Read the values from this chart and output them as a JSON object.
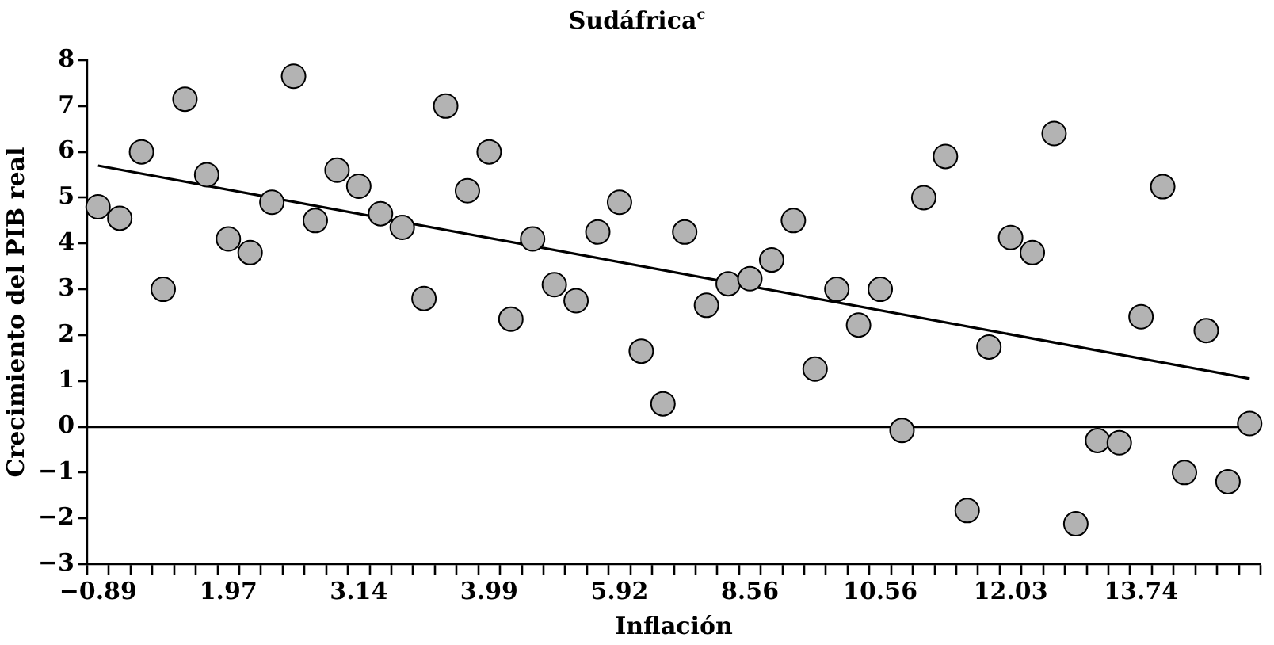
{
  "chart_data": {
    "type": "scatter",
    "title": "Sudáfrica$^{c}$",
    "xlabel": "Inflación",
    "ylabel": "Crecimiento del PIB real",
    "categories": [
      "−0.89",
      null,
      null,
      null,
      null,
      null,
      "1.97",
      null,
      null,
      null,
      null,
      null,
      "3.14",
      null,
      null,
      null,
      null,
      null,
      "3.99",
      null,
      null,
      null,
      null,
      null,
      "5.92",
      null,
      null,
      null,
      null,
      null,
      "8.56",
      null,
      null,
      null,
      null,
      null,
      "10.56",
      null,
      null,
      null,
      null,
      null,
      "12.03",
      null,
      null,
      null,
      null,
      null,
      "13.74",
      null,
      null,
      null,
      null,
      null
    ],
    "series": [
      {
        "color": "#b3b3b3",
        "marker": "circle",
        "values": [
          4.8,
          4.55,
          6.0,
          3.0,
          7.15,
          5.5,
          4.1,
          3.8,
          4.9,
          7.65,
          4.5,
          5.6,
          5.25,
          4.65,
          4.35,
          2.8,
          7.0,
          5.15,
          6.0,
          2.35,
          4.1,
          3.1,
          2.75,
          4.25,
          4.9,
          1.65,
          0.5,
          4.25,
          2.65,
          3.12,
          3.23,
          3.64,
          4.5,
          1.26,
          3.0,
          2.22,
          3.0,
          -0.08,
          5.0,
          5.9,
          -1.83,
          1.74,
          4.13,
          3.8,
          6.4,
          -2.12,
          -0.3,
          -0.35,
          2.4,
          5.24,
          -1.0,
          2.1,
          -1.2,
          0.07
        ]
      },
      {
        "type": "line",
        "color": "#000000",
        "marker": "none",
        "values": [
          5.7,
          null,
          null,
          null,
          null,
          null,
          null,
          null,
          null,
          null,
          null,
          null,
          null,
          null,
          null,
          null,
          null,
          null,
          null,
          null,
          null,
          null,
          null,
          null,
          null,
          null,
          null,
          null,
          null,
          null,
          null,
          null,
          null,
          null,
          null,
          null,
          null,
          null,
          null,
          null,
          null,
          null,
          null,
          null,
          null,
          null,
          null,
          null,
          null,
          null,
          null,
          null,
          null,
          1.05
        ]
      }
    ],
    "ylim": [
      -3,
      8
    ],
    "yticks": [
      -3,
      -2,
      -1,
      0,
      1,
      2,
      3,
      4,
      5,
      6,
      7,
      8
    ],
    "ref_lines": [
      {
        "axis": "y",
        "value": 0,
        "color": "#000000"
      }
    ],
    "grid": false,
    "legend": false
  }
}
